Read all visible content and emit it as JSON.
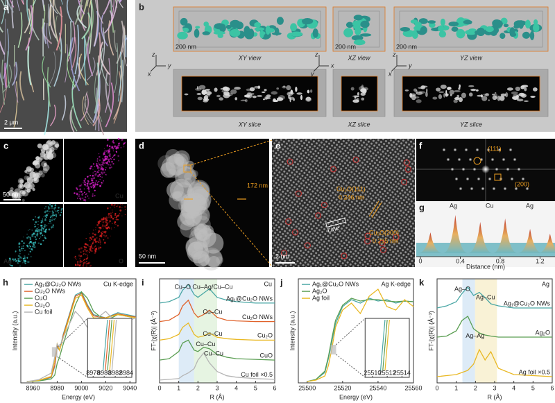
{
  "panels": {
    "a": {
      "label": "a",
      "scale": "2 μm"
    },
    "b": {
      "label": "b",
      "views": [
        "XY view",
        "XZ view",
        "YZ view"
      ],
      "slices": [
        "XY slice",
        "XZ slice",
        "YZ slice"
      ],
      "scales": [
        "200 nm",
        "200 nm",
        "200 nm"
      ],
      "axes": [
        "z",
        "y",
        "x",
        "z",
        "x",
        "y",
        "z",
        "y",
        "x"
      ]
    },
    "c": {
      "label": "c",
      "scale": "50 nm",
      "maps": [
        "Cu",
        "Ag",
        "O"
      ]
    },
    "d": {
      "label": "d",
      "width": "172 nm",
      "scale": "50 nm"
    },
    "e": {
      "label": "e",
      "plane1": "Cu₂O(111)",
      "d1": "0.246 nm",
      "line": "Line",
      "plane2": "Cu₂O(200)",
      "d2": "0.215 nm",
      "scale": "2 nm"
    },
    "f": {
      "label": "f",
      "spots": [
        "(111)",
        "(200)"
      ]
    },
    "g": {
      "label": "g",
      "peaks": [
        "Ag",
        "Cu",
        "Ag"
      ],
      "xlabel": "Distance (nm)",
      "xlim": [
        0,
        1.35
      ],
      "xticks": [
        0,
        0.4,
        0.8,
        1.2
      ]
    }
  },
  "chart_data": [
    {
      "type": "line",
      "label": "h",
      "xlabel": "Energy (eV)",
      "ylabel": "Intensity (a.u.)",
      "edge_label": "Cu K-edge",
      "legend": "upper left",
      "x": [
        8955,
        8965,
        8975,
        8978,
        8980,
        8982,
        8985,
        8990,
        8995,
        9000,
        9005,
        9010,
        9020,
        9030,
        9045
      ],
      "xlim": [
        8950,
        9045
      ],
      "xticks": [
        8960,
        8980,
        9000,
        9020,
        9040
      ],
      "ylim": [
        0,
        1.6
      ],
      "inset_xlim": [
        8977,
        8985
      ],
      "inset_xticks": [
        8978,
        8980,
        8982,
        8984
      ],
      "series": [
        {
          "name": "Ag₁@Cu₂O NWs",
          "color": "#4aa7a5",
          "values": [
            0.02,
            0.04,
            0.08,
            0.25,
            0.55,
            0.5,
            0.75,
            1.05,
            1.35,
            1.4,
            1.2,
            1.05,
            1.0,
            1.08,
            1.02
          ]
        },
        {
          "name": "Cu₂O NWs",
          "color": "#e0622a",
          "values": [
            0.02,
            0.04,
            0.09,
            0.27,
            0.57,
            0.5,
            0.73,
            1.03,
            1.33,
            1.38,
            1.18,
            1.03,
            1.0,
            1.06,
            1.01
          ]
        },
        {
          "name": "CuO",
          "color": "#5a9e52",
          "values": [
            0.02,
            0.03,
            0.06,
            0.12,
            0.3,
            0.4,
            0.6,
            0.9,
            1.2,
            1.4,
            1.3,
            1.1,
            0.95,
            1.05,
            1.0
          ]
        },
        {
          "name": "Cu₂O",
          "color": "#e9b823",
          "values": [
            0.02,
            0.04,
            0.1,
            0.35,
            0.6,
            0.5,
            0.7,
            1.0,
            1.3,
            1.35,
            1.15,
            1.0,
            1.0,
            1.05,
            1.0
          ]
        },
        {
          "name": "Cu foil",
          "color": "#b5b5b5",
          "values": [
            0.02,
            0.05,
            0.15,
            0.4,
            0.6,
            0.55,
            0.7,
            0.9,
            1.1,
            1.0,
            0.85,
            0.95,
            1.1,
            0.9,
            1.0
          ]
        }
      ]
    },
    {
      "type": "line",
      "label": "i",
      "xlabel": "R (Å)",
      "ylabel": "FT-|χ(R)| (Å⁻³)",
      "edge_label": "Cu",
      "x": [
        0,
        0.5,
        1,
        1.2,
        1.5,
        1.8,
        2,
        2.3,
        2.6,
        3,
        3.5,
        4,
        5,
        6
      ],
      "xlim": [
        0,
        6
      ],
      "xticks": [
        0,
        1,
        2,
        3,
        4,
        5,
        6
      ],
      "ylim": [
        0,
        7.3
      ],
      "annotations": [
        "Cu–O",
        "Cu–Ag/Cu–Cu",
        "Cu–Cu",
        "Cu–Cu",
        "Cu–Cu",
        "Cu–Cu"
      ],
      "series": [
        {
          "name": "Ag₁@Cu₂O NWs",
          "color": "#4aa7a5",
          "values": [
            5.6,
            5.7,
            6.0,
            6.5,
            6.9,
            6.2,
            6.0,
            6.3,
            6.6,
            6.0,
            5.8,
            5.7,
            5.6,
            5.6
          ]
        },
        {
          "name": "Cu₂O NWs",
          "color": "#e0622a",
          "values": [
            4.3,
            4.4,
            4.8,
            5.4,
            5.8,
            4.9,
            4.6,
            4.8,
            5.1,
            4.6,
            4.4,
            4.35,
            4.3,
            4.3
          ]
        },
        {
          "name": "Cu₂O",
          "color": "#e9b823",
          "values": [
            3.0,
            3.1,
            3.4,
            3.9,
            4.2,
            3.4,
            3.2,
            3.3,
            3.5,
            3.2,
            3.1,
            3.05,
            3.0,
            3.0
          ]
        },
        {
          "name": "CuO",
          "color": "#5a9e52",
          "values": [
            1.6,
            1.7,
            2.2,
            2.8,
            3.0,
            2.3,
            2.2,
            2.5,
            2.4,
            2.0,
            1.8,
            1.7,
            1.65,
            1.6
          ]
        },
        {
          "name": "Cu foil ×0.5",
          "color": "#b5b5b5",
          "values": [
            0.2,
            0.25,
            0.3,
            0.5,
            0.7,
            1.0,
            1.6,
            2.1,
            1.4,
            0.8,
            0.5,
            0.4,
            0.3,
            0.25
          ]
        }
      ]
    },
    {
      "type": "line",
      "label": "j",
      "xlabel": "Energy (eV)",
      "ylabel": "Intensity (a.u.)",
      "edge_label": "Ag K-edge",
      "legend": "upper left",
      "x": [
        25500,
        25505,
        25510,
        25512,
        25514,
        25516,
        25520,
        25525,
        25530,
        25535,
        25540,
        25545,
        25550,
        25555,
        25560
      ],
      "xlim": [
        25495,
        25560
      ],
      "xticks": [
        25500,
        25520,
        25540,
        25560
      ],
      "ylim": [
        0,
        1.5
      ],
      "inset_xlim": [
        25509,
        25515
      ],
      "inset_xticks": [
        25510,
        25512,
        25514
      ],
      "series": [
        {
          "name": "Ag₁@Cu₂O NWs",
          "color": "#4aa7a5",
          "values": [
            0.02,
            0.05,
            0.15,
            0.35,
            0.6,
            0.85,
            1.1,
            1.2,
            1.15,
            1.22,
            1.18,
            1.2,
            1.15,
            1.18,
            1.17
          ]
        },
        {
          "name": "Ag₂O",
          "color": "#5a9e52",
          "values": [
            0.02,
            0.05,
            0.17,
            0.38,
            0.65,
            0.9,
            1.12,
            1.22,
            1.18,
            1.2,
            1.2,
            1.18,
            1.17,
            1.18,
            1.17
          ]
        },
        {
          "name": "Ag foil",
          "color": "#e9b823",
          "values": [
            0.02,
            0.04,
            0.1,
            0.25,
            0.5,
            0.8,
            1.05,
            1.15,
            1.0,
            1.25,
            1.35,
            1.1,
            1.05,
            1.2,
            1.1
          ]
        }
      ]
    },
    {
      "type": "line",
      "label": "k",
      "xlabel": "R (Å)",
      "ylabel": "FT-|χ(R)| (Å⁻³)",
      "edge_label": "Ag",
      "x": [
        0,
        0.5,
        1,
        1.3,
        1.6,
        1.9,
        2.2,
        2.5,
        2.8,
        3.2,
        4,
        5,
        6
      ],
      "xlim": [
        0,
        6
      ],
      "xticks": [
        0,
        1,
        2,
        3,
        4,
        5,
        6
      ],
      "ylim": [
        0,
        5
      ],
      "annotations": [
        "Ag–O",
        "Ag–Cu",
        "Ag–Ag"
      ],
      "series": [
        {
          "name": "Ag₁@Cu₂O NWs",
          "color": "#4aa7a5",
          "values": [
            3.6,
            3.7,
            3.9,
            4.3,
            4.6,
            4.2,
            4.35,
            4.1,
            3.8,
            3.7,
            3.6,
            3.6,
            3.6
          ]
        },
        {
          "name": "Ag₂O",
          "color": "#5a9e52",
          "values": [
            2.2,
            2.25,
            2.5,
            3.0,
            3.2,
            2.6,
            2.4,
            2.3,
            2.25,
            2.2,
            2.2,
            2.2,
            2.2
          ]
        },
        {
          "name": "Ag foil ×0.5",
          "color": "#e9b823",
          "values": [
            0.3,
            0.35,
            0.4,
            0.5,
            0.6,
            0.9,
            1.6,
            1.1,
            1.5,
            0.7,
            0.4,
            0.35,
            0.3
          ]
        }
      ]
    }
  ]
}
